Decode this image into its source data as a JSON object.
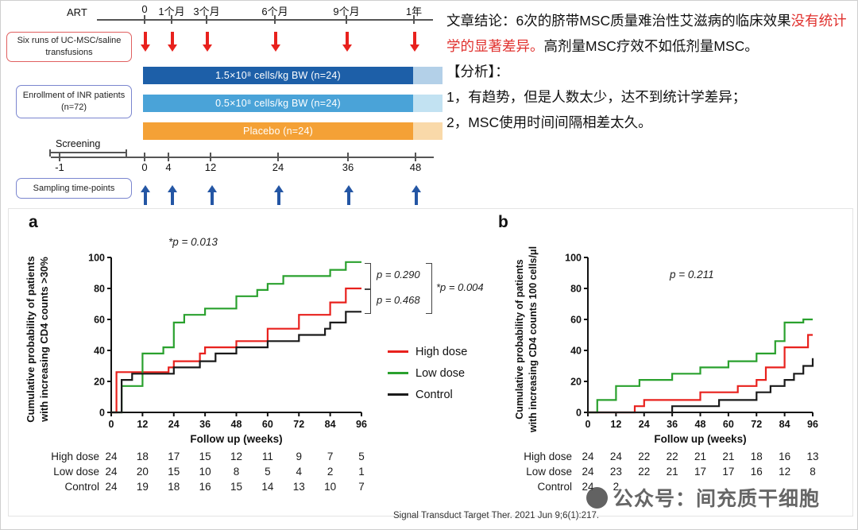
{
  "design": {
    "art_label": "ART",
    "art_ticks": [
      "0",
      "1个月",
      "3个月",
      "6个月",
      "9个月",
      "1年"
    ],
    "transfusion_box_label": "Six runs of UC-MSC/saline transfusions",
    "transfusion_arrow_color": "#e8211d",
    "enrollment_box_label": "Enrollment of INR patients (n=72)",
    "bars": [
      {
        "label": "1.5×10⁸ cells/kg BW (n=24)",
        "color": "#1d5fa8",
        "ext_color": "#b3d0e8"
      },
      {
        "label": "0.5×10⁸ cells/kg BW (n=24)",
        "color": "#4aa3d8",
        "ext_color": "#c2e2f2"
      },
      {
        "label": "Placebo (n=24)",
        "color": "#f4a136",
        "ext_color": "#f9d9a9"
      }
    ],
    "screening_label": "Screening",
    "week_ticks": [
      "-1",
      "0",
      "4",
      "12",
      "24",
      "36",
      "48"
    ],
    "sampling_box_label": "Sampling time-points",
    "sampling_arrow_color": "#2456a4"
  },
  "commentary": {
    "conclusion_prefix": "文章结论：6次的脐带MSC质量难治性艾滋病的临床效果",
    "conclusion_red": "没有统计学的显著差异。",
    "conclusion_suffix": "高剂量MSC疗效不如低剂量MSC。",
    "analysis_header": "【分析】：",
    "points": [
      "1，有趋势，但是人数太少，达不到统计学差异；",
      "2，MSC使用时间间隔相差太久。"
    ],
    "red_color": "#e0312e"
  },
  "chart_data": [
    {
      "panel": "a",
      "type": "line",
      "subtype": "kaplan-meier-step",
      "xlabel": "Follow up (weeks)",
      "ylabel": "Cumulative probability of patients with increasing CD4 counts >30%",
      "ylabel_lines": [
        "Cumulative probability of patients",
        "with increasing CD4 counts >30%"
      ],
      "xlim": [
        0,
        96
      ],
      "ylim": [
        0,
        100
      ],
      "xticks": [
        0,
        12,
        24,
        36,
        48,
        60,
        72,
        84,
        96
      ],
      "yticks": [
        0,
        20,
        40,
        60,
        80,
        100
      ],
      "grid": false,
      "annotation": "*p = 0.013",
      "comparisons": [
        "p = 0.290",
        "p = 0.468",
        "*p = 0.004"
      ],
      "legend": [
        {
          "name": "High dose",
          "color": "#e8211d"
        },
        {
          "name": "Low dose",
          "color": "#2aa12e"
        },
        {
          "name": "Control",
          "color": "#1a1a1a"
        }
      ],
      "series": [
        {
          "name": "High dose",
          "color": "#e8211d",
          "points": [
            [
              0,
              0
            ],
            [
              2,
              26
            ],
            [
              22,
              29
            ],
            [
              24,
              33
            ],
            [
              34,
              38
            ],
            [
              36,
              42
            ],
            [
              48,
              46
            ],
            [
              60,
              54
            ],
            [
              72,
              63
            ],
            [
              84,
              71
            ],
            [
              90,
              80
            ],
            [
              96,
              80
            ]
          ]
        },
        {
          "name": "Low dose",
          "color": "#2aa12e",
          "points": [
            [
              0,
              0
            ],
            [
              4,
              17
            ],
            [
              12,
              38
            ],
            [
              20,
              42
            ],
            [
              24,
              58
            ],
            [
              28,
              63
            ],
            [
              36,
              67
            ],
            [
              48,
              75
            ],
            [
              56,
              79
            ],
            [
              60,
              83
            ],
            [
              66,
              88
            ],
            [
              84,
              92
            ],
            [
              90,
              97
            ],
            [
              96,
              97
            ]
          ]
        },
        {
          "name": "Control",
          "color": "#1a1a1a",
          "points": [
            [
              0,
              0
            ],
            [
              4,
              21
            ],
            [
              8,
              25
            ],
            [
              24,
              29
            ],
            [
              34,
              33
            ],
            [
              40,
              38
            ],
            [
              48,
              42
            ],
            [
              60,
              46
            ],
            [
              72,
              50
            ],
            [
              82,
              54
            ],
            [
              84,
              58
            ],
            [
              90,
              65
            ],
            [
              96,
              65
            ]
          ]
        }
      ],
      "at_risk": {
        "rows": [
          {
            "label": "High dose",
            "values": [
              "24",
              "18",
              "17",
              "15",
              "12",
              "11",
              "9",
              "7",
              "5"
            ]
          },
          {
            "label": "Low dose",
            "values": [
              "24",
              "20",
              "15",
              "10",
              "8",
              "5",
              "4",
              "2",
              "1"
            ]
          },
          {
            "label": "Control",
            "values": [
              "24",
              "19",
              "18",
              "16",
              "15",
              "14",
              "13",
              "10",
              "7"
            ]
          }
        ]
      }
    },
    {
      "panel": "b",
      "type": "line",
      "subtype": "kaplan-meier-step",
      "xlabel": "Follow up (weeks)",
      "ylabel": "Cumulative probability of patients with increasing CD4 counts 100 cells/μl",
      "ylabel_lines": [
        "Cumulative probability of patients",
        "with increasing CD4 counts 100 cells/μl"
      ],
      "xlim": [
        0,
        96
      ],
      "ylim": [
        0,
        100
      ],
      "xticks": [
        0,
        12,
        24,
        36,
        48,
        60,
        72,
        84,
        96
      ],
      "yticks": [
        0,
        20,
        40,
        60,
        80,
        100
      ],
      "grid": false,
      "annotation": "p = 0.211",
      "series": [
        {
          "name": "High dose",
          "color": "#e8211d",
          "points": [
            [
              0,
              0
            ],
            [
              20,
              4
            ],
            [
              24,
              8
            ],
            [
              48,
              13
            ],
            [
              64,
              17
            ],
            [
              72,
              21
            ],
            [
              76,
              29
            ],
            [
              84,
              42
            ],
            [
              94,
              50
            ],
            [
              96,
              50
            ]
          ]
        },
        {
          "name": "Low dose",
          "color": "#2aa12e",
          "points": [
            [
              0,
              0
            ],
            [
              4,
              8
            ],
            [
              12,
              17
            ],
            [
              22,
              21
            ],
            [
              36,
              25
            ],
            [
              48,
              29
            ],
            [
              60,
              33
            ],
            [
              72,
              38
            ],
            [
              80,
              46
            ],
            [
              84,
              58
            ],
            [
              92,
              60
            ],
            [
              96,
              60
            ]
          ]
        },
        {
          "name": "Control",
          "color": "#1a1a1a",
          "points": [
            [
              0,
              0
            ],
            [
              36,
              4
            ],
            [
              56,
              8
            ],
            [
              72,
              13
            ],
            [
              78,
              17
            ],
            [
              84,
              21
            ],
            [
              88,
              25
            ],
            [
              92,
              30
            ],
            [
              96,
              35
            ]
          ]
        }
      ],
      "at_risk": {
        "rows": [
          {
            "label": "High dose",
            "values": [
              "24",
              "24",
              "22",
              "22",
              "21",
              "21",
              "18",
              "16",
              "13"
            ]
          },
          {
            "label": "Low dose",
            "values": [
              "24",
              "23",
              "22",
              "21",
              "17",
              "17",
              "16",
              "12",
              "8"
            ]
          },
          {
            "label": "Control",
            "values": [
              "24",
              "2",
              "",
              "",
              "",
              "",
              "",
              "",
              ""
            ]
          }
        ]
      }
    }
  ],
  "citation": "Signal Transduct Target Ther. 2021 Jun 9;6(1):217.",
  "watermark": {
    "text": "公众号：间充质干细胞"
  }
}
